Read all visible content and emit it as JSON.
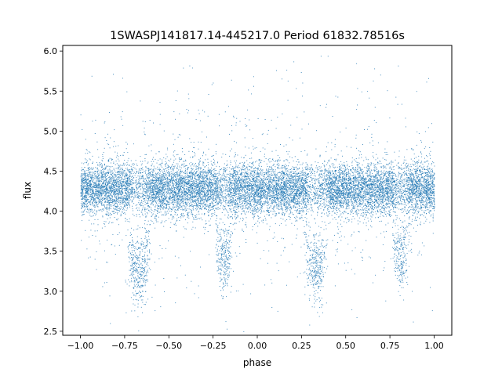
{
  "chart_data": {
    "type": "scatter",
    "title": "1SWASPJ141817.14-445217.0 Period 61832.78516s",
    "xlabel": "phase",
    "ylabel": "flux",
    "xlim": [
      -1.1,
      1.1
    ],
    "ylim": [
      2.45,
      6.07
    ],
    "x_ticks": [
      -1.0,
      -0.75,
      -0.5,
      -0.25,
      0.0,
      0.25,
      0.5,
      0.75,
      1.0
    ],
    "x_tick_labels": [
      "−1.00",
      "−0.75",
      "−0.50",
      "−0.25",
      "0.00",
      "0.25",
      "0.50",
      "0.75",
      "1.00"
    ],
    "y_ticks": [
      2.5,
      3.0,
      3.5,
      4.0,
      4.5,
      5.0,
      5.5,
      6.0
    ],
    "y_tick_labels": [
      "2.5",
      "3.0",
      "3.5",
      "4.0",
      "4.5",
      "5.0",
      "5.5",
      "6.0"
    ],
    "grid": false,
    "point_color": "#1f77b4",
    "series": [
      {
        "baseline_flux": 4.28,
        "baseline_spread": 0.16,
        "phase_range": [
          -1.0,
          1.0
        ],
        "eclipses": [
          {
            "phase": -0.67,
            "depth_flux": 3.25,
            "width": 0.07
          },
          {
            "phase": -0.19,
            "depth_flux": 3.4,
            "width": 0.05
          },
          {
            "phase": 0.33,
            "depth_flux": 3.25,
            "width": 0.07
          },
          {
            "phase": 0.81,
            "depth_flux": 3.4,
            "width": 0.05
          }
        ],
        "outlier_flux_range": [
          2.6,
          5.9
        ]
      }
    ]
  }
}
